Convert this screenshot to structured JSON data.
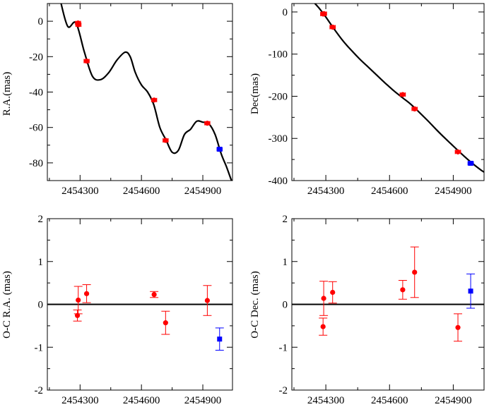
{
  "colors": {
    "series_a": "#ff0000",
    "series_b": "#0000ff",
    "axis": "#000000"
  },
  "chart_data": [
    {
      "type": "scatter",
      "id": "ra",
      "title": "",
      "xlabel": "",
      "ylabel": "R.A.(mas)",
      "xlim": [
        2454140,
        2455045
      ],
      "ylim": [
        -90,
        10
      ],
      "xticks": [
        2454300,
        2454600,
        2454900
      ],
      "xtick_labels": [
        "2454300",
        "2454600",
        "2454900"
      ],
      "yticks": [
        -80,
        -60,
        -40,
        -20,
        0
      ],
      "ytick_labels": [
        "-80",
        "-60",
        "-40",
        "-20",
        "0"
      ],
      "series": [
        {
          "name": "red",
          "color": "#ff0000",
          "marker": "circle",
          "points": [
            {
              "x": 2454290,
              "y": -1.0,
              "xerr": 12,
              "yerr": 0
            },
            {
              "x": 2454292,
              "y": -2.0,
              "xerr": 12,
              "yerr": 0
            },
            {
              "x": 2454332,
              "y": -22.5,
              "xerr": 12,
              "yerr": 0
            },
            {
              "x": 2454662,
              "y": -44.5,
              "xerr": 12,
              "yerr": 0
            },
            {
              "x": 2454718,
              "y": -67.3,
              "xerr": 12,
              "yerr": 0
            },
            {
              "x": 2454922,
              "y": -57.6,
              "xerr": 12,
              "yerr": 0
            }
          ]
        },
        {
          "name": "blue",
          "color": "#0000ff",
          "marker": "square",
          "points": [
            {
              "x": 2454982,
              "y": -72.3,
              "xerr": 12,
              "yerr": 0
            }
          ]
        }
      ],
      "model_curve": {
        "x": [
          2454205,
          2454240,
          2454280,
          2454320,
          2454360,
          2454400,
          2454440,
          2454480,
          2454520,
          2454545,
          2454570,
          2454600,
          2454630,
          2454660,
          2454690,
          2454720,
          2454750,
          2454780,
          2454810,
          2454840,
          2454870,
          2454900,
          2454930,
          2454960,
          2454990,
          2455015,
          2455040
        ],
        "y": [
          11,
          -3,
          -1,
          -17,
          -31,
          -33,
          -29,
          -22,
          -17.5,
          -20,
          -29,
          -36,
          -40,
          -47,
          -60,
          -67,
          -74,
          -73,
          -64,
          -61,
          -56.5,
          -57,
          -58,
          -64,
          -75,
          -82,
          -90
        ]
      }
    },
    {
      "type": "scatter",
      "id": "dec",
      "title": "",
      "xlabel": "",
      "ylabel": "Dec(mas)",
      "xlim": [
        2454140,
        2455045
      ],
      "ylim": [
        -400,
        20
      ],
      "xticks": [
        2454300,
        2454600,
        2454900
      ],
      "xtick_labels": [
        "2454300",
        "2454600",
        "2454900"
      ],
      "yticks": [
        -400,
        -300,
        -200,
        -100,
        0
      ],
      "ytick_labels": [
        "-400",
        "-300",
        "-200",
        "-100",
        "0"
      ],
      "series": [
        {
          "name": "red",
          "color": "#ff0000",
          "marker": "circle",
          "points": [
            {
              "x": 2454288,
              "y": -5,
              "xerr": 12,
              "yerr": 0
            },
            {
              "x": 2454291,
              "y": -4,
              "xerr": 12,
              "yerr": 0
            },
            {
              "x": 2454332,
              "y": -36,
              "xerr": 12,
              "yerr": 0
            },
            {
              "x": 2454662,
              "y": -196,
              "xerr": 12,
              "yerr": 0
            },
            {
              "x": 2454718,
              "y": -230,
              "xerr": 12,
              "yerr": 0
            },
            {
              "x": 2454922,
              "y": -332,
              "xerr": 12,
              "yerr": 0
            }
          ]
        },
        {
          "name": "blue",
          "color": "#0000ff",
          "marker": "square",
          "points": [
            {
              "x": 2454982,
              "y": -359,
              "xerr": 12,
              "yerr": 0
            }
          ]
        }
      ],
      "model_curve": {
        "x": [
          2454245,
          2454270,
          2454300,
          2454340,
          2454380,
          2454420,
          2454460,
          2454500,
          2454540,
          2454580,
          2454620,
          2454660,
          2454700,
          2454740,
          2454780,
          2454820,
          2454860,
          2454900,
          2454940,
          2454980,
          2455020,
          2455045
        ],
        "y": [
          22,
          8,
          -12,
          -41,
          -68,
          -91,
          -112,
          -131,
          -150,
          -169,
          -187,
          -203,
          -219,
          -238,
          -258,
          -279,
          -299,
          -318,
          -337,
          -355,
          -371,
          -380
        ]
      }
    },
    {
      "type": "scatter",
      "id": "oc_ra",
      "title": "",
      "xlabel": "",
      "ylabel": "O-C R.A. (mas)",
      "xlim": [
        2454140,
        2455045
      ],
      "ylim": [
        -2,
        2
      ],
      "xticks": [
        2454300,
        2454600,
        2454900
      ],
      "xtick_labels": [
        "2454300",
        "2454600",
        "2454900"
      ],
      "yticks": [
        -2,
        -1,
        0,
        1,
        2
      ],
      "ytick_labels": [
        "-2",
        "-1",
        "0",
        "1",
        "2"
      ],
      "zero_line": true,
      "series": [
        {
          "name": "red",
          "color": "#ff0000",
          "marker": "circle",
          "points": [
            {
              "x": 2454287,
              "y": -0.26,
              "yerr": 0.13
            },
            {
              "x": 2454291,
              "y": 0.1,
              "yerr": 0.32
            },
            {
              "x": 2454332,
              "y": 0.25,
              "yerr": 0.21
            },
            {
              "x": 2454662,
              "y": 0.23,
              "yerr": 0.07
            },
            {
              "x": 2454718,
              "y": -0.43,
              "yerr": 0.27
            },
            {
              "x": 2454922,
              "y": 0.09,
              "yerr": 0.35
            }
          ]
        },
        {
          "name": "blue",
          "color": "#0000ff",
          "marker": "square",
          "points": [
            {
              "x": 2454982,
              "y": -0.81,
              "yerr": 0.26
            }
          ]
        }
      ]
    },
    {
      "type": "scatter",
      "id": "oc_dec",
      "title": "",
      "xlabel": "",
      "ylabel": "O-C Dec. (mas)",
      "xlim": [
        2454140,
        2455045
      ],
      "ylim": [
        -2,
        2
      ],
      "xticks": [
        2454300,
        2454600,
        2454900
      ],
      "xtick_labels": [
        "2454300",
        "2454600",
        "2454900"
      ],
      "yticks": [
        -2,
        -1,
        0,
        1,
        2
      ],
      "ytick_labels": [
        "-2",
        "-1",
        "0",
        "1",
        "2"
      ],
      "zero_line": true,
      "series": [
        {
          "name": "red",
          "color": "#ff0000",
          "marker": "circle",
          "points": [
            {
              "x": 2454287,
              "y": -0.52,
              "yerr": 0.2
            },
            {
              "x": 2454290,
              "y": 0.14,
              "yerr": 0.4
            },
            {
              "x": 2454332,
              "y": 0.28,
              "yerr": 0.25
            },
            {
              "x": 2454662,
              "y": 0.34,
              "yerr": 0.22
            },
            {
              "x": 2454718,
              "y": 0.75,
              "yerr": 0.59
            },
            {
              "x": 2454922,
              "y": -0.54,
              "yerr": 0.32
            }
          ]
        },
        {
          "name": "blue",
          "color": "#0000ff",
          "marker": "square",
          "points": [
            {
              "x": 2454982,
              "y": 0.31,
              "yerr": 0.4
            }
          ]
        }
      ]
    }
  ]
}
